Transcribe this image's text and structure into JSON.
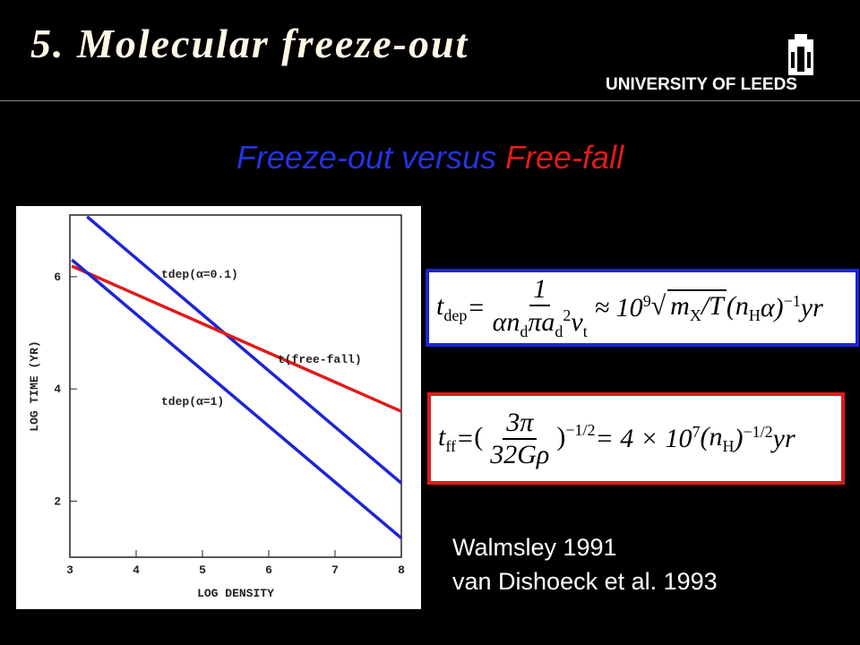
{
  "header": {
    "title": "5. Molecular freeze-out",
    "logo": "UNIVERSITY OF LEEDS"
  },
  "subtitle": {
    "parts": [
      {
        "text": "Freeze-out",
        "color": "#2433e0"
      },
      {
        "text": "versus",
        "color": "#2433e0"
      },
      {
        "text": "Free-fall",
        "color": "#e01b1b"
      }
    ]
  },
  "chart_data": {
    "type": "line",
    "xlabel": "LOG DENSITY",
    "ylabel": "LOG TIME (YR)",
    "xlim": [
      3,
      8
    ],
    "ylim": [
      1,
      7.1
    ],
    "xticks": [
      3,
      4,
      5,
      6,
      7,
      8
    ],
    "yticks": [
      2,
      4,
      6
    ],
    "series": [
      {
        "name": "tdep(α=0.1)",
        "color": "#1c25d6",
        "x": [
          3.26,
          8
        ],
        "values": [
          7.07,
          2.32
        ]
      },
      {
        "name": "t(free-fall)",
        "color": "#e01b1b",
        "x": [
          3.03,
          8
        ],
        "values": [
          6.19,
          3.6
        ]
      },
      {
        "name": "tdep(α=1)",
        "color": "#1c25d6",
        "x": [
          3.03,
          8
        ],
        "values": [
          6.3,
          1.34
        ]
      }
    ]
  },
  "equations": [
    {
      "border": "#1c25d6",
      "items": [
        {
          "text": "t",
          "sub": "dep"
        },
        {
          "text": " = "
        },
        {
          "frac": {
            "num": [
              {
                "text": "1"
              }
            ],
            "den": [
              {
                "text": "αn",
                "sub": "d"
              },
              {
                "text": "πa",
                "sub": "d",
                "sup": "2"
              },
              {
                "text": "v",
                "sub": "t"
              }
            ]
          }
        },
        {
          "text": " ≈ 10",
          "sup": "9"
        },
        {
          "sqrt": [
            {
              "text": "m",
              "sub": "X"
            },
            {
              "text": "/T"
            }
          ]
        },
        {
          "text": "(n",
          "sub": "H"
        },
        {
          "text": "α)",
          "sup": "−1"
        },
        {
          "text": " yr"
        }
      ]
    },
    {
      "border": "#e01b1b",
      "items": [
        {
          "text": "t",
          "sub": "ff"
        },
        {
          "text": " = "
        },
        {
          "frac": {
            "num": [
              {
                "text": "3π"
              }
            ],
            "den": [
              {
                "text": "32Gρ"
              }
            ]
          },
          "paren": true,
          "sup": "−1/2"
        },
        {
          "text": " = 4 × 10",
          "sup": "7"
        },
        {
          "text": " (n",
          "sub": "H"
        },
        {
          "text": ")",
          "sup": "−1/2"
        },
        {
          "text": " yr"
        }
      ]
    }
  ],
  "references": [
    "Walmsley 1991",
    "van Dishoeck et al. 1993"
  ]
}
